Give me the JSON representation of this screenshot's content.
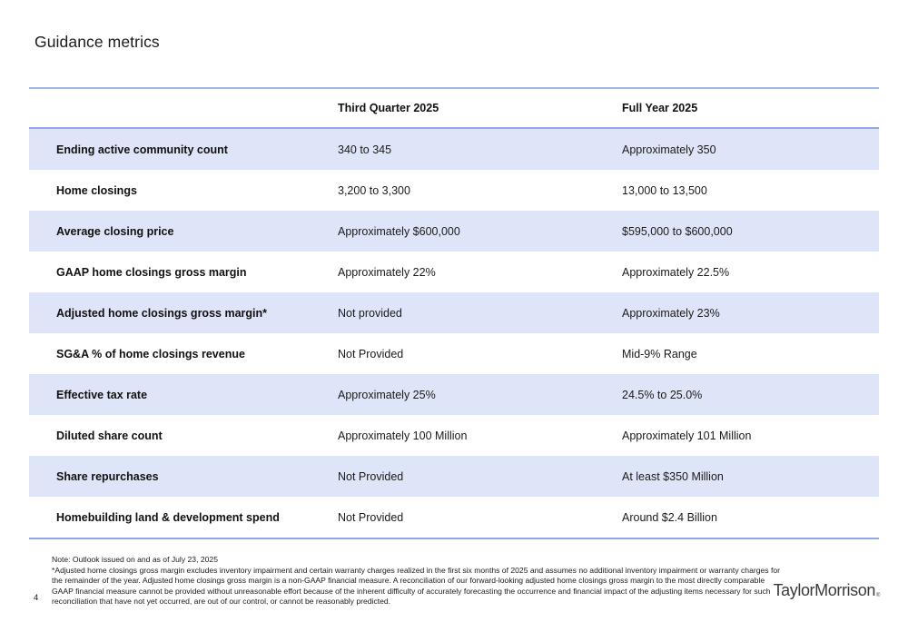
{
  "slide": {
    "title": "Guidance metrics",
    "page_number": "4",
    "logo": {
      "text": "TaylorMorrison",
      "mark": "®"
    }
  },
  "table": {
    "columns": [
      "",
      "Third Quarter 2025",
      "Full Year 2025"
    ],
    "rows": [
      {
        "metric": "Ending active community count",
        "q3": "340 to 345",
        "fy": "Approximately 350"
      },
      {
        "metric": "Home closings",
        "q3": "3,200 to 3,300",
        "fy": "13,000 to 13,500"
      },
      {
        "metric": "Average closing price",
        "q3": "Approximately $600,000",
        "fy": "$595,000 to $600,000"
      },
      {
        "metric": "GAAP home closings gross margin",
        "q3": "Approximately 22%",
        "fy": "Approximately 22.5%"
      },
      {
        "metric": "Adjusted home closings gross margin*",
        "q3": "Not provided",
        "fy": "Approximately 23%"
      },
      {
        "metric": "SG&A % of home closings revenue",
        "q3": "Not Provided",
        "fy": "Mid-9% Range"
      },
      {
        "metric": "Effective tax rate",
        "q3": "Approximately 25%",
        "fy": "24.5% to 25.0%"
      },
      {
        "metric": "Diluted share count",
        "q3": "Approximately 100 Million",
        "fy": "Approximately 101 Million"
      },
      {
        "metric": "Share repurchases",
        "q3": "Not Provided",
        "fy": "At least $350 Million"
      },
      {
        "metric": "Homebuilding land & development spend",
        "q3": "Not Provided",
        "fy": "Around $2.4 Billion"
      }
    ]
  },
  "footnotes": {
    "lines": [
      "Note: Outlook issued on and as of July 23, 2025",
      "*Adjusted home closings gross margin excludes inventory impairment and certain warranty charges realized in the first six months of 2025 and assumes no additional inventory impairment or warranty charges for",
      "the remainder of the year. Adjusted home closings gross margin is a non-GAAP financial measure. A reconciliation of our forward-looking adjusted home closings gross margin to the most directly comparable",
      "GAAP financial measure cannot be provided without unreasonable effort because of the inherent difficulty of accurately forecasting the occurrence and financial impact of the adjusting items necessary for such",
      "reconciliation that have not yet occurred, are out of our control, or cannot be reasonably predicted."
    ]
  },
  "colors": {
    "accent_line": "#8fa6e8",
    "row_shade": "#dfe5f8"
  }
}
